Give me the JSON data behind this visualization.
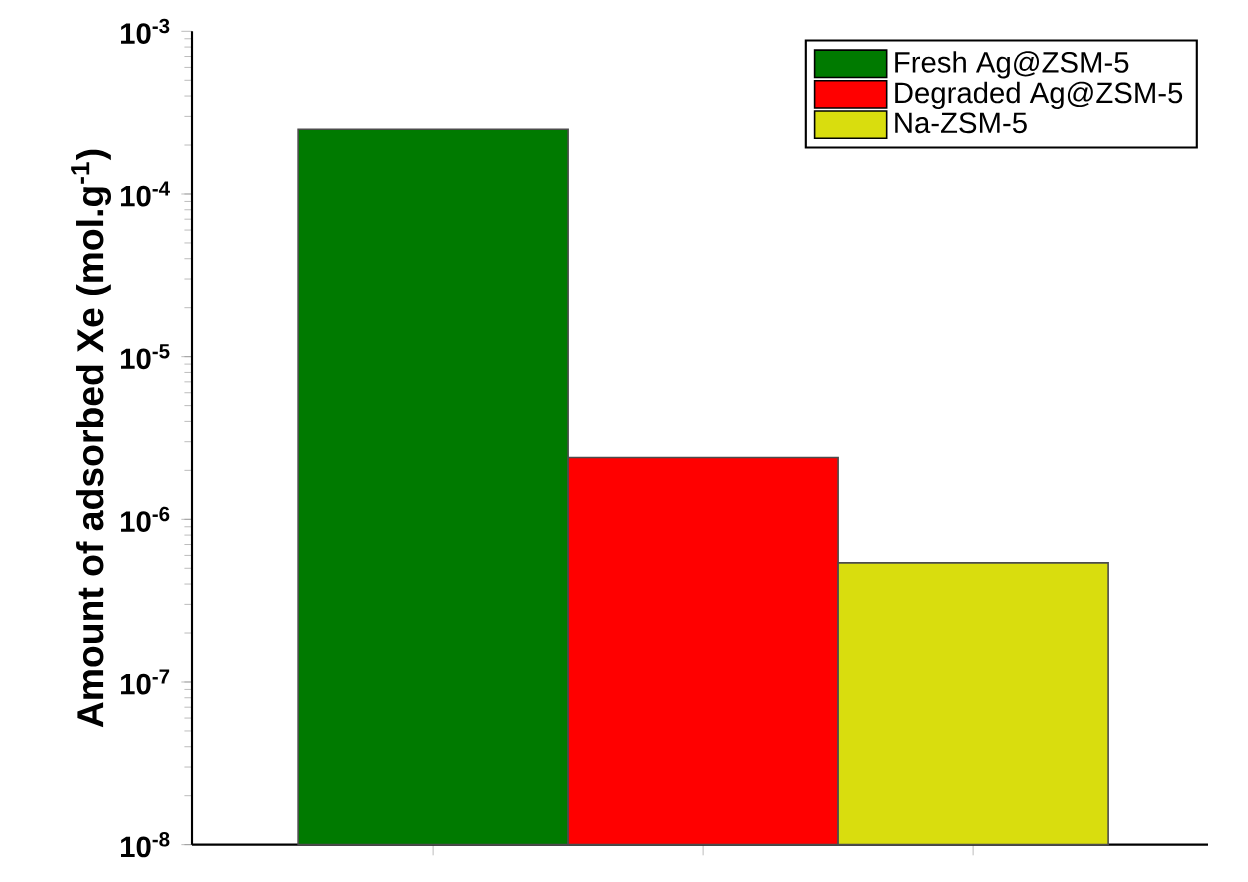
{
  "chart_data": {
    "type": "bar",
    "ylabel": "Amount of adsorbed Xe (mol.g$^{-1}$)",
    "categories": [
      null,
      null,
      null
    ],
    "series": [
      {
        "name": "Fresh Ag@ZSM-5",
        "color": "#007a00",
        "values": [
          0.00025,
          null,
          null
        ]
      },
      {
        "name": "Degraded Ag@ZSM-5",
        "color": "#ff0000",
        "values": [
          null,
          2.4e-06,
          null
        ]
      },
      {
        "name": "Na-ZSM-5",
        "color": "#d9dd0e",
        "values": [
          null,
          null,
          5.4e-07
        ]
      }
    ],
    "log": "y",
    "ylim": [
      1e-08,
      0.001
    ],
    "yticks": [
      {
        "value": 1e-08,
        "label": "10$^{-8}$"
      },
      {
        "value": 1e-07,
        "label": "10$^{-7}$"
      },
      {
        "value": 1e-06,
        "label": "10$^{-6}$"
      },
      {
        "value": 1e-05,
        "label": "10$^{-5}$"
      },
      {
        "value": 0.0001,
        "label": "10$^{-4}$"
      },
      {
        "value": 0.001,
        "label": "10$^{-3}$"
      }
    ],
    "tick_labels": "y",
    "legend": "top right",
    "grid": false
  }
}
